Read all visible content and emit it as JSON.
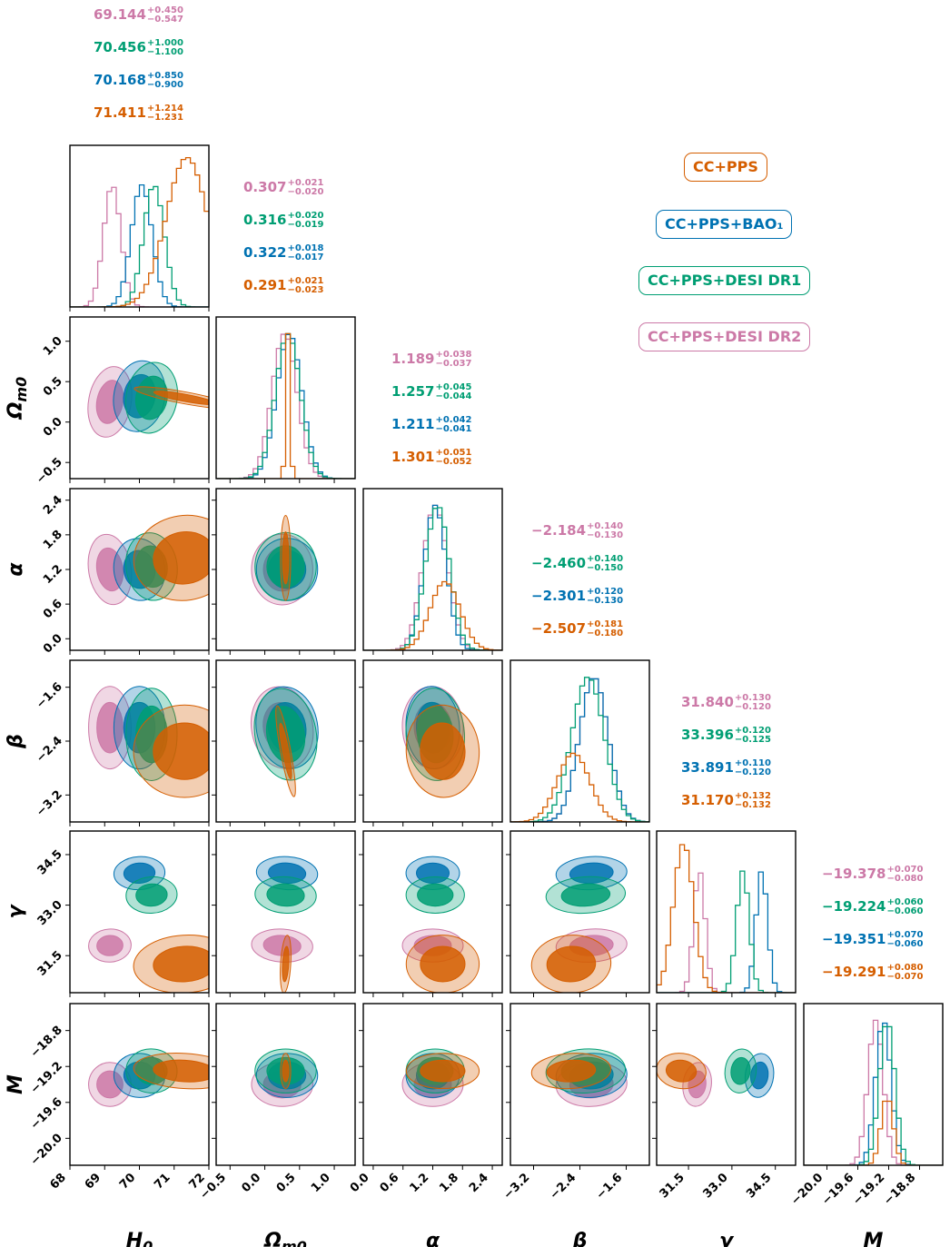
{
  "chart_data": {
    "type": "corner",
    "title": "",
    "parameters": [
      {
        "key": "H0",
        "label": "H",
        "label_sub": "0",
        "range": [
          68,
          72
        ],
        "ticks": [
          68,
          69,
          70,
          71,
          72
        ],
        "tick_labels": [
          "68",
          "69",
          "70",
          "71",
          "72"
        ]
      },
      {
        "key": "Om0",
        "label": "Ω",
        "label_sub": "m0",
        "range": [
          -0.7,
          1.3
        ],
        "ticks": [
          -0.5,
          0.0,
          0.5,
          1.0
        ],
        "tick_labels": [
          "−0.5",
          "0.0",
          "0.5",
          "1.0"
        ]
      },
      {
        "key": "alpha",
        "label": "α",
        "label_sub": "",
        "range": [
          -0.2,
          2.6
        ],
        "ticks": [
          0.0,
          0.6,
          1.2,
          1.8,
          2.4
        ],
        "tick_labels": [
          "0.0",
          "0.6",
          "1.2",
          "1.8",
          "2.4"
        ]
      },
      {
        "key": "beta",
        "label": "β",
        "label_sub": "",
        "range": [
          -3.6,
          -1.2
        ],
        "ticks": [
          -3.2,
          -2.4,
          -1.6
        ],
        "tick_labels": [
          "−3.2",
          "−2.4",
          "−1.6"
        ]
      },
      {
        "key": "gamma",
        "label": "γ",
        "label_sub": "",
        "range": [
          30.4,
          35.2
        ],
        "ticks": [
          31.5,
          33.0,
          34.5
        ],
        "tick_labels": [
          "31.5",
          "33.0",
          "34.5"
        ]
      },
      {
        "key": "M",
        "label": "M",
        "label_sub": "",
        "range": [
          -20.3,
          -18.5
        ],
        "ticks": [
          -20.0,
          -19.6,
          -19.2,
          -18.8
        ],
        "tick_labels": [
          "−20.0",
          "−19.6",
          "−19.2",
          "−18.8"
        ]
      }
    ],
    "series": [
      {
        "name": "CC+PPS",
        "color": "#d55e00",
        "means": [
          71.3,
          0.3,
          1.4,
          -2.55,
          31.25,
          -19.25
        ],
        "sigmas": [
          0.6,
          0.03,
          0.3,
          0.28,
          0.35,
          0.08
        ],
        "stats": [
          {
            "c": "71.411",
            "up": "+1.214",
            "lo": "−1.231"
          },
          {
            "c": "0.291",
            "up": "+0.021",
            "lo": "−0.023"
          },
          {
            "c": "1.301",
            "up": "+0.051",
            "lo": "−0.052"
          },
          {
            "c": "−2.507",
            "up": "+0.181",
            "lo": "−0.180"
          },
          {
            "c": "31.170",
            "up": "+0.132",
            "lo": "−0.132"
          },
          {
            "c": "−19.291",
            "up": "+0.080",
            "lo": "−0.070"
          }
        ]
      },
      {
        "name": "CC+PPS+BAO₁",
        "color": "#0072b2",
        "means": [
          70.0,
          0.32,
          1.2,
          -2.2,
          33.95,
          -19.3
        ],
        "sigmas": [
          0.3,
          0.18,
          0.22,
          0.25,
          0.2,
          0.1
        ],
        "stats": [
          {
            "c": "70.168",
            "up": "+0.850",
            "lo": "−0.900"
          },
          {
            "c": "0.322",
            "up": "+0.018",
            "lo": "−0.017"
          },
          {
            "c": "1.211",
            "up": "+0.042",
            "lo": "−0.041"
          },
          {
            "c": "−2.301",
            "up": "+0.120",
            "lo": "−0.130"
          },
          {
            "c": "33.891",
            "up": "+0.110",
            "lo": "−0.120"
          },
          {
            "c": "−19.351",
            "up": "+0.070",
            "lo": "−0.060"
          }
        ]
      },
      {
        "name": "CC+PPS+DESI DR1",
        "color": "#009e73",
        "means": [
          70.35,
          0.3,
          1.25,
          -2.3,
          33.3,
          -19.25
        ],
        "sigmas": [
          0.3,
          0.18,
          0.24,
          0.28,
          0.22,
          0.1
        ],
        "stats": [
          {
            "c": "70.456",
            "up": "+1.000",
            "lo": "−1.100"
          },
          {
            "c": "0.316",
            "up": "+0.020",
            "lo": "−0.019"
          },
          {
            "c": "1.257",
            "up": "+0.045",
            "lo": "−0.044"
          },
          {
            "c": "−2.460",
            "up": "+0.140",
            "lo": "−0.150"
          },
          {
            "c": "33.396",
            "up": "+0.120",
            "lo": "−0.125"
          },
          {
            "c": "−19.224",
            "up": "+0.060",
            "lo": "−0.060"
          }
        ]
      },
      {
        "name": "CC+PPS+DESI DR2",
        "color": "#cc79a7",
        "means": [
          69.15,
          0.25,
          1.2,
          -2.2,
          31.8,
          -19.4
        ],
        "sigmas": [
          0.25,
          0.18,
          0.25,
          0.25,
          0.2,
          0.1
        ],
        "stats": [
          {
            "c": "69.144",
            "up": "+0.450",
            "lo": "−0.547"
          },
          {
            "c": "0.307",
            "up": "+0.021",
            "lo": "−0.020"
          },
          {
            "c": "1.189",
            "up": "+0.038",
            "lo": "−0.037"
          },
          {
            "c": "−2.184",
            "up": "+0.140",
            "lo": "−0.130"
          },
          {
            "c": "31.840",
            "up": "+0.130",
            "lo": "−0.120"
          },
          {
            "c": "−19.378",
            "up": "+0.070",
            "lo": "−0.080"
          }
        ]
      }
    ],
    "stat_order": [
      "CC+PPS+DESI DR2",
      "CC+PPS+DESI DR1",
      "CC+PPS+BAO₁",
      "CC+PPS"
    ],
    "legend_order": [
      "CC+PPS",
      "CC+PPS+BAO₁",
      "CC+PPS+DESI DR1",
      "CC+PPS+DESI DR2"
    ]
  }
}
